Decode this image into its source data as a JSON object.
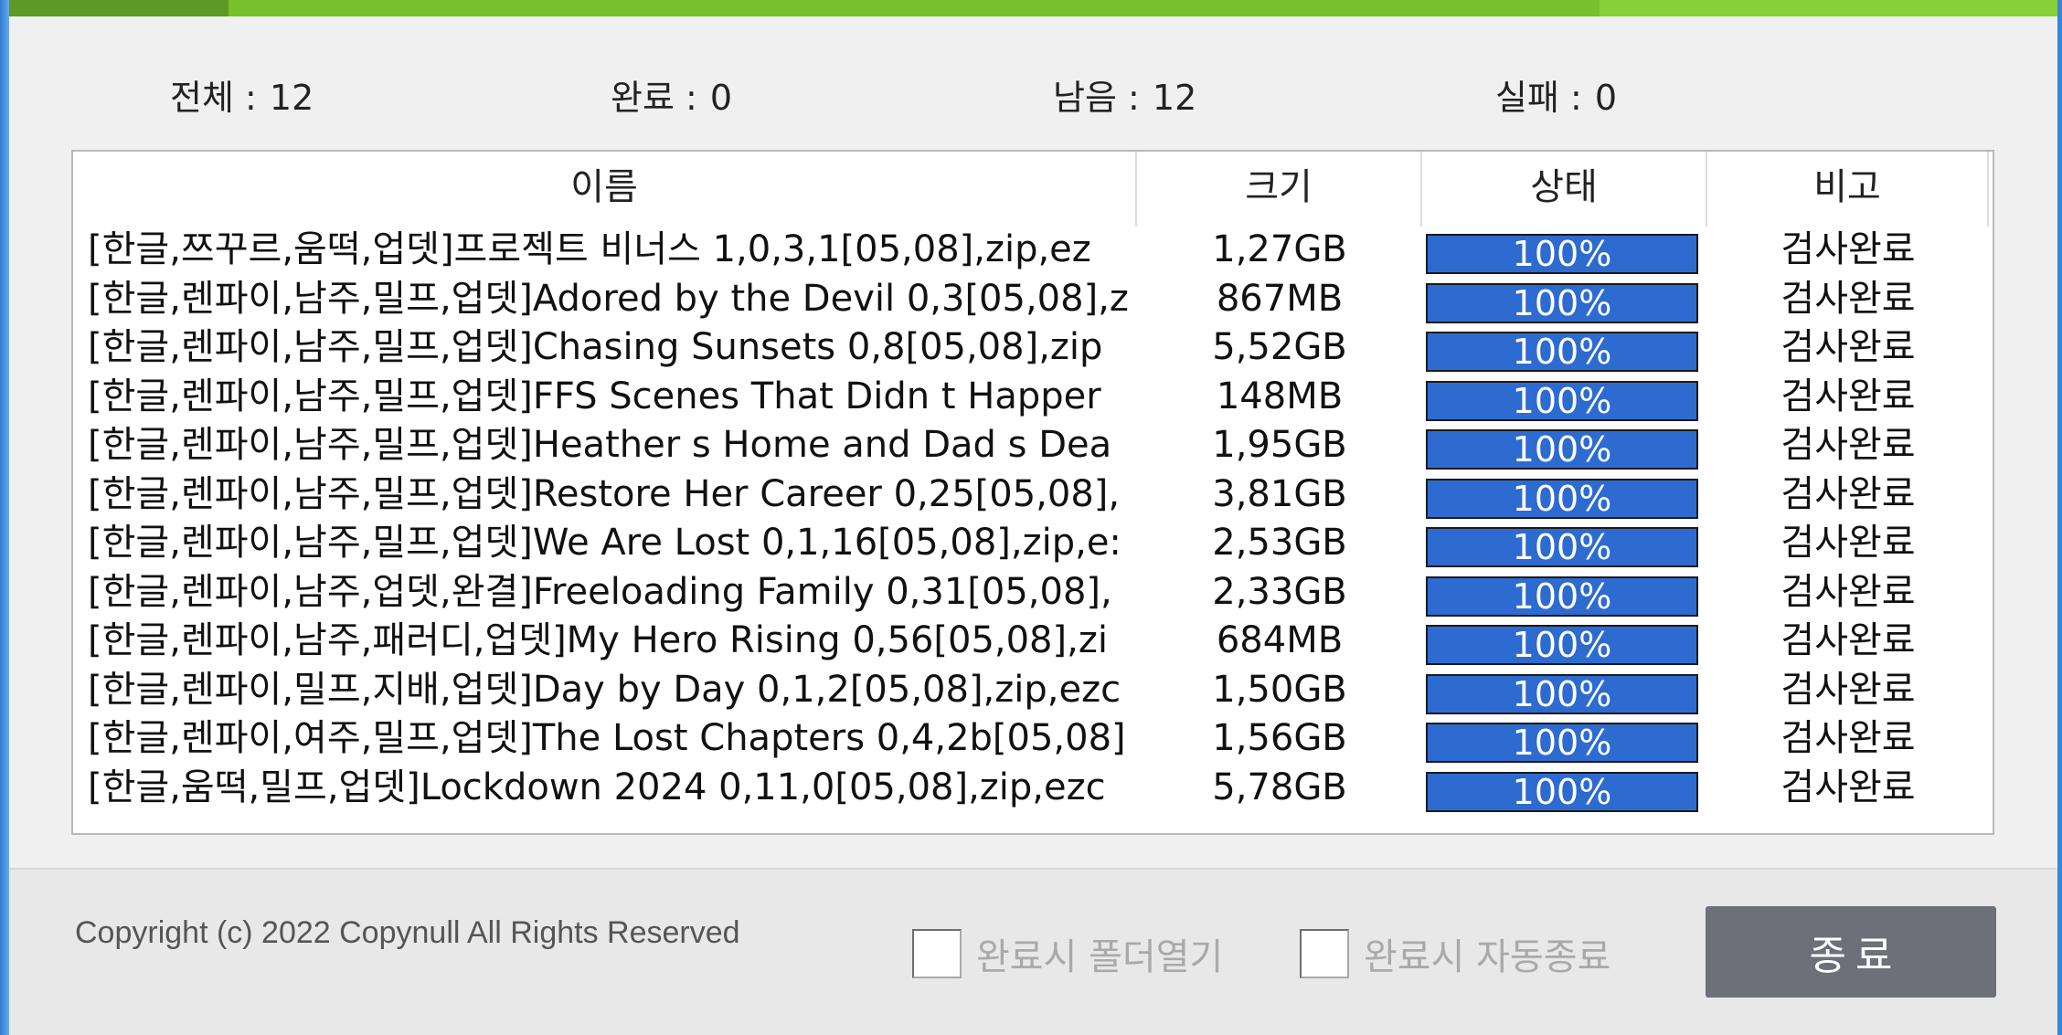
{
  "stats": {
    "total_label": "전체 :",
    "total_value": "12",
    "done_label": "완료 :",
    "done_value": "0",
    "remain_label": "남음 :",
    "remain_value": "12",
    "fail_label": "실패 :",
    "fail_value": "0"
  },
  "list": {
    "columns": [
      "이름",
      "크기",
      "상태",
      "비고"
    ],
    "rows": [
      {
        "name": "[한글,쯔꾸르,움떡,업뎃]프로젝트 비너스 1,0,3,1[05,08],zip,ez",
        "size": "1,27GB",
        "status": "100%",
        "progress": 100,
        "note": "검사완료"
      },
      {
        "name": "[한글,렌파이,남주,밀프,업뎃]Adored by the Devil 0,3[05,08],z",
        "size": "867MB",
        "status": "100%",
        "progress": 100,
        "note": "검사완료"
      },
      {
        "name": "[한글,렌파이,남주,밀프,업뎃]Chasing Sunsets 0,8[05,08],zip",
        "size": "5,52GB",
        "status": "100%",
        "progress": 100,
        "note": "검사완료"
      },
      {
        "name": "[한글,렌파이,남주,밀프,업뎃]FFS Scenes That Didn t Happer",
        "size": "148MB",
        "status": "100%",
        "progress": 100,
        "note": "검사완료"
      },
      {
        "name": "[한글,렌파이,남주,밀프,업뎃]Heather s Home and Dad s Dea",
        "size": "1,95GB",
        "status": "100%",
        "progress": 100,
        "note": "검사완료"
      },
      {
        "name": "[한글,렌파이,남주,밀프,업뎃]Restore Her Career 0,25[05,08],",
        "size": "3,81GB",
        "status": "100%",
        "progress": 100,
        "note": "검사완료"
      },
      {
        "name": "[한글,렌파이,남주,밀프,업뎃]We Are Lost 0,1,16[05,08],zip,e:",
        "size": "2,53GB",
        "status": "100%",
        "progress": 100,
        "note": "검사완료"
      },
      {
        "name": "[한글,렌파이,남주,업뎃,완결]Freeloading Family 0,31[05,08],",
        "size": "2,33GB",
        "status": "100%",
        "progress": 100,
        "note": "검사완료"
      },
      {
        "name": "[한글,렌파이,남주,패러디,업뎃]My Hero Rising 0,56[05,08],zi",
        "size": "684MB",
        "status": "100%",
        "progress": 100,
        "note": "검사완료"
      },
      {
        "name": "[한글,렌파이,밀프,지배,업뎃]Day by Day 0,1,2[05,08],zip,ezc",
        "size": "1,50GB",
        "status": "100%",
        "progress": 100,
        "note": "검사완료"
      },
      {
        "name": "[한글,렌파이,여주,밀프,업뎃]The Lost Chapters 0,4,2b[05,08]",
        "size": "1,56GB",
        "status": "100%",
        "progress": 100,
        "note": "검사완료"
      },
      {
        "name": "[한글,움떡,밀프,업뎃]Lockdown 2024 0,11,0[05,08],zip,ezc",
        "size": "5,78GB",
        "status": "100%",
        "progress": 100,
        "note": "검사완료"
      }
    ]
  },
  "footer": {
    "copyright": "Copyright (c) 2022 Copynull All Rights Reserved",
    "open_folder_label": "완료시 폴더열기",
    "auto_exit_label": "완료시 자동종료",
    "exit_label": "종료"
  },
  "colors": {
    "accent_green": "#76c12c",
    "progress_blue": "#2e6bd0",
    "exit_button": "#6d7079"
  }
}
